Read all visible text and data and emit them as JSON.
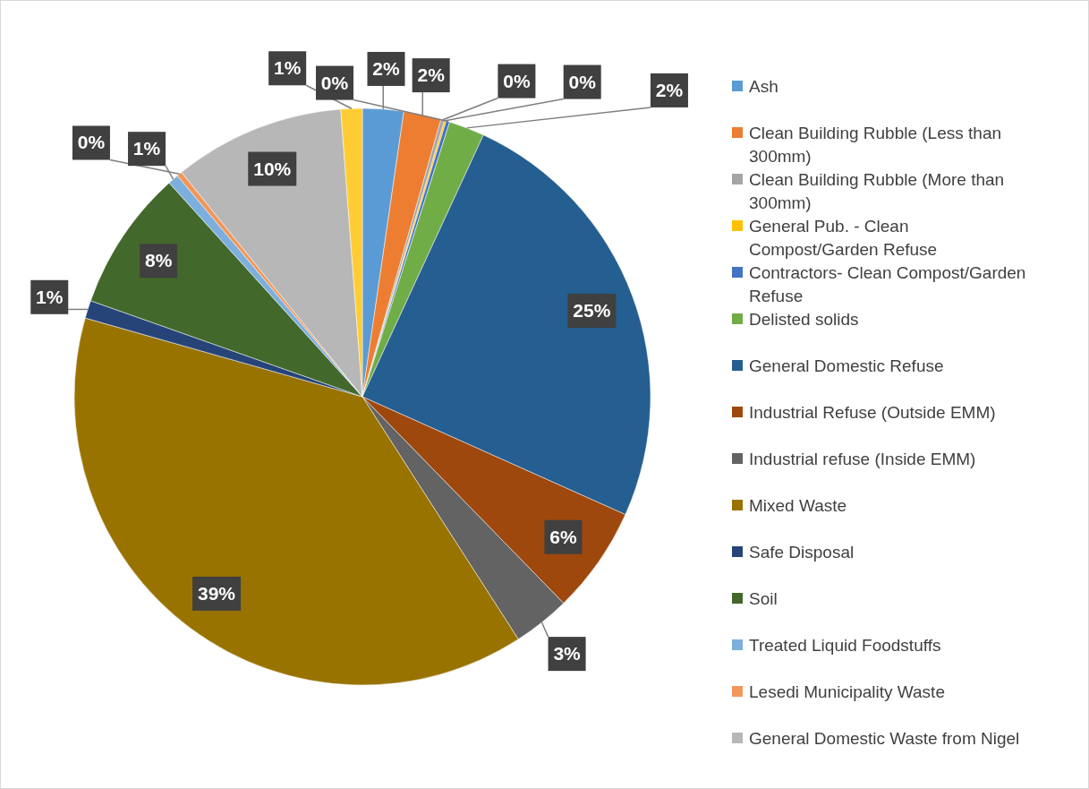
{
  "chart_data": {
    "type": "pie",
    "categories": [
      "Ash",
      "Clean Building Rubble (Less than 300mm)",
      "Clean Building Rubble (More than 300mm)",
      "General Pub. - Clean Compost/Garden Refuse",
      "Contractors- Clean Compost/Garden Refuse",
      "Delisted solids",
      "General Domestic Refuse",
      "Industrial Refuse (Outside EMM)",
      "Industrial refuse (Inside EMM)",
      "Mixed Waste",
      "Safe Disposal",
      "Soil",
      "Treated Liquid Foodstuffs",
      "Lesedi Municipality Waste",
      "General Domestic Waste from Nigel",
      null
    ],
    "values": [
      2.3,
      2.1,
      0.2,
      0.1,
      0.2,
      2.0,
      24.8,
      6.0,
      3.2,
      38.5,
      1.0,
      7.9,
      0.6,
      0.3,
      9.6,
      1.2
    ],
    "value_labels": [
      "2%",
      "2%",
      "0%",
      "0%",
      "0%",
      "2%",
      "25%",
      "6%",
      "3%",
      "39%",
      "1%",
      "8%",
      "1%",
      "0%",
      "10%",
      "1%"
    ],
    "colors": [
      "#5b9bd5",
      "#ed7d31",
      "#a5a5a5",
      "#ffc000",
      "#4472c4",
      "#70ad47",
      "#255e91",
      "#9e480e",
      "#636363",
      "#997300",
      "#264478",
      "#43682b",
      "#7cafdd",
      "#f1975a",
      "#b7b7b7",
      "#ffcd33"
    ],
    "legend": "right"
  }
}
